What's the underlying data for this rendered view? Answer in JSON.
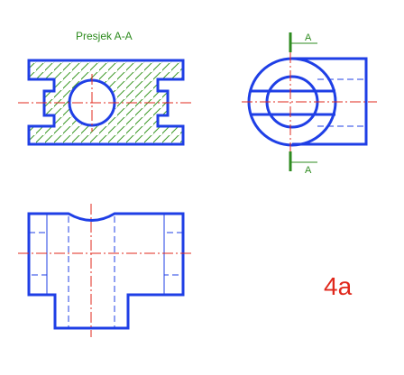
{
  "labels": {
    "section_title": "Presjek A-A",
    "cut_top": "A",
    "cut_bottom": "A",
    "figure_number": "4a"
  },
  "colors": {
    "outline": "#1f3fe6",
    "hatch": "#3f9a2a",
    "center_lines": "#e0281c",
    "section_marks": "#2e8b1f",
    "figure_number": "#e0281c"
  }
}
